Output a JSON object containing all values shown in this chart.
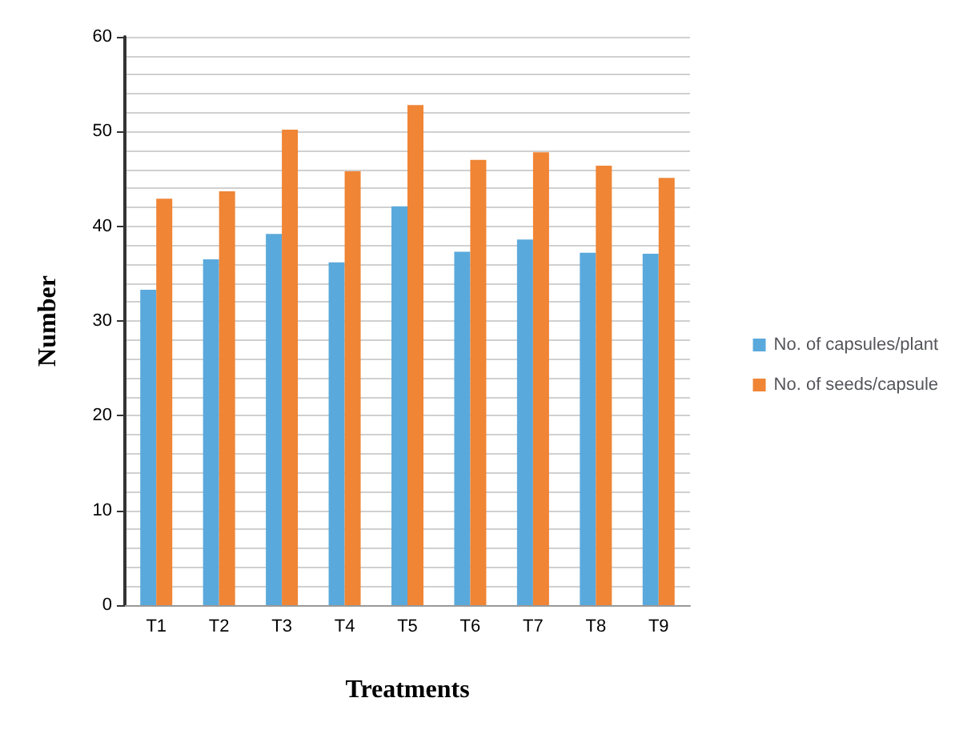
{
  "chart_data": {
    "type": "bar",
    "xlabel": "Treatments",
    "ylabel": "Number",
    "categories": [
      "T1",
      "T2",
      "T3",
      "T4",
      "T5",
      "T6",
      "T7",
      "T8",
      "T9"
    ],
    "series": [
      {
        "name": "No. of capsules/plant",
        "color": "#5aa9dc",
        "values": [
          33.3,
          36.5,
          39.2,
          36.2,
          42.1,
          37.3,
          38.6,
          37.2,
          37.1
        ]
      },
      {
        "name": "No. of seeds/capsule",
        "color": "#ef8535",
        "values": [
          42.9,
          43.7,
          50.2,
          45.8,
          52.8,
          47,
          47.8,
          46.4,
          45.1
        ]
      }
    ],
    "ylim": [
      0,
      60
    ],
    "yticks": [
      0,
      10,
      20,
      30,
      40,
      50,
      60
    ],
    "grid": true,
    "legend": "right"
  }
}
